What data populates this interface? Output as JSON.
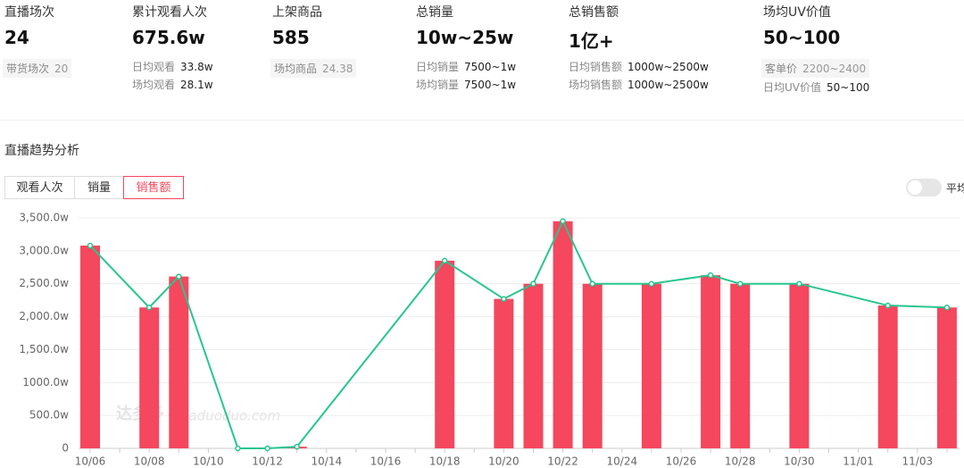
{
  "stats": [
    {
      "title": "直播场次",
      "value": "24",
      "details": [
        {
          "label": "带货场次",
          "value": "20"
        }
      ]
    },
    {
      "title": "累计观看人次",
      "value": "675.6w",
      "details": [
        {
          "label": "日均观看",
          "value": "33.8w"
        },
        {
          "label": "场均观看",
          "value": "28.1w"
        }
      ]
    },
    {
      "title": "上架商品",
      "value": "585",
      "details": [
        {
          "label": "场均商品",
          "value": "24.38"
        }
      ]
    },
    {
      "title": "总销量",
      "value": "10w~25w",
      "details": [
        {
          "label": "日均销量",
          "value": "7500~1w"
        },
        {
          "label": "场均销量",
          "value": "7500~1w"
        }
      ]
    },
    {
      "title": "总销售额",
      "value": "1亿+",
      "details": [
        {
          "label": "日均销售额",
          "value": "1000w~2500w"
        },
        {
          "label": "场均销售额",
          "value": "1000w~2500w"
        }
      ]
    },
    {
      "title": "场均UV价值",
      "value": "50~100",
      "details": [
        {
          "label": "客单价",
          "value": "2200~2400"
        },
        {
          "label": "日均UV价值",
          "value": "50~100"
        }
      ]
    }
  ],
  "section_title": "直播趋势分析",
  "tabs": [
    "观看人次",
    "销量",
    "销售额"
  ],
  "toggle_label": "平均",
  "watermark": {
    "logo": "达多多",
    "site": "daduoduo.com"
  },
  "chart_data": {
    "type": "bar_line",
    "categories": [
      "10/06",
      null,
      "10/08",
      null,
      "10/10",
      null,
      "10/12",
      null,
      "10/14",
      null,
      "10/16",
      null,
      "10/18",
      null,
      "10/20",
      null,
      "10/22",
      null,
      "10/24",
      null,
      "10/26",
      null,
      "10/28",
      null,
      "10/30",
      null,
      "11/01",
      null,
      "11/03",
      null
    ],
    "series": [
      {
        "type": "bar",
        "color": "#f5475d",
        "values": [
          3080,
          null,
          2140,
          2610,
          null,
          0,
          0,
          25,
          null,
          null,
          null,
          null,
          2850,
          null,
          2270,
          2500,
          3450,
          2500,
          null,
          2500,
          null,
          2630,
          2500,
          null,
          2500,
          null,
          null,
          2170,
          null,
          2140
        ]
      },
      {
        "type": "line",
        "color": "#28c68e",
        "values": [
          3080,
          null,
          2140,
          2610,
          null,
          0,
          0,
          25,
          null,
          null,
          null,
          null,
          2850,
          null,
          2270,
          2500,
          3450,
          2500,
          null,
          2500,
          null,
          2630,
          2500,
          null,
          2500,
          null,
          null,
          2170,
          null,
          2140
        ]
      }
    ],
    "ylim": [
      0,
      3500
    ],
    "yticks": [
      0,
      {
        "value": 500,
        "label": "500.0w"
      },
      {
        "value": 1000,
        "label": "1000.0w"
      },
      {
        "value": 1500,
        "label": "1,500.0w"
      },
      {
        "value": 2000,
        "label": "2,000.0w"
      },
      {
        "value": 2500,
        "label": "2,500.0w"
      },
      {
        "value": 3000,
        "label": "3,000.0w"
      },
      {
        "value": 3500,
        "label": "3,500.0w"
      }
    ],
    "grid": true
  }
}
